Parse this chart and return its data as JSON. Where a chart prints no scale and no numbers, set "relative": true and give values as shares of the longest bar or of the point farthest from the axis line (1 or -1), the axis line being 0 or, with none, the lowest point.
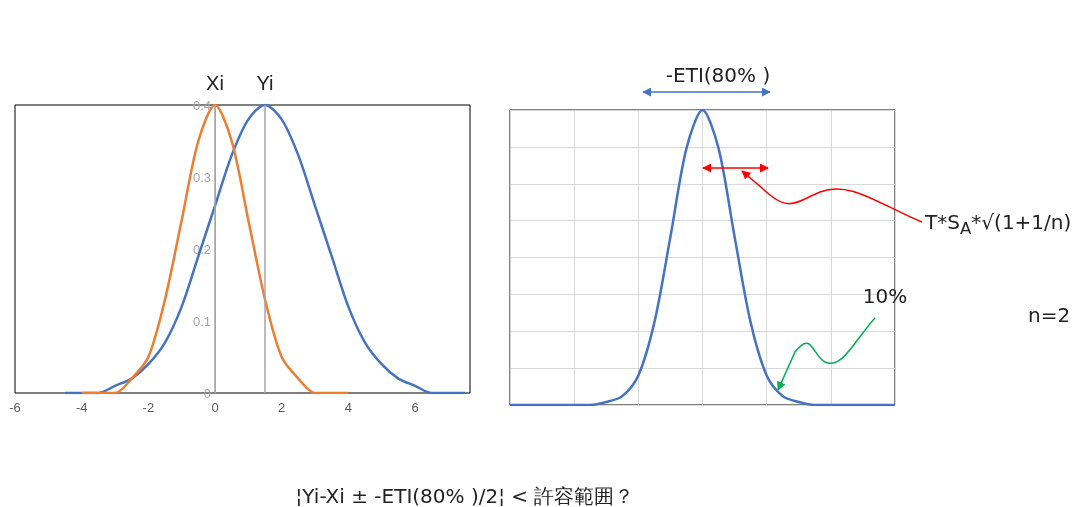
{
  "chart_data": [
    {
      "type": "line",
      "xlim": [
        -6,
        7.65
      ],
      "xticks": [
        -6,
        -4,
        -2,
        0,
        2,
        4,
        6
      ],
      "ylim": [
        0,
        0.4
      ],
      "yticks": [
        0,
        0.1,
        0.2,
        0.3,
        0.4
      ],
      "series": [
        {
          "color": "#4472c4",
          "x": [
            -4.5,
            -4,
            -3.5,
            -3,
            -2.5,
            -2,
            -1.5,
            -1,
            -0.5,
            0,
            0.5,
            1,
            1.5,
            2,
            2.5,
            3,
            3.5,
            4,
            4.5,
            5,
            5.5,
            6,
            6.5,
            7,
            7.5
          ],
          "values": [
            0,
            0,
            0,
            0.01,
            0.02,
            0.04,
            0.07,
            0.12,
            0.19,
            0.26,
            0.33,
            0.38,
            0.4,
            0.38,
            0.33,
            0.26,
            0.19,
            0.12,
            0.07,
            0.04,
            0.02,
            0.01,
            0,
            0,
            0
          ]
        },
        {
          "color": "#ed7d31",
          "x": [
            -4,
            -3.5,
            -3,
            -2.5,
            -2,
            -1.5,
            -1,
            -0.5,
            0,
            0.5,
            1,
            1.5,
            2,
            2.5,
            3,
            3.5,
            4
          ],
          "values": [
            0,
            0,
            0,
            0.02,
            0.05,
            0.13,
            0.24,
            0.35,
            0.4,
            0.35,
            0.24,
            0.13,
            0.05,
            0.02,
            0,
            0,
            0
          ]
        }
      ],
      "ref_lines": [
        {
          "axis": "x",
          "value": 0,
          "label": "Xi",
          "color": "#a6a6a6"
        },
        {
          "axis": "x",
          "value": 1.5,
          "label": "Yi",
          "color": "#a6a6a6"
        }
      ]
    },
    {
      "type": "line",
      "relative": true,
      "grid": true,
      "color": "#4472c4",
      "categories": [
        null,
        null,
        null,
        null,
        null,
        null,
        null,
        null,
        null,
        null,
        null,
        null,
        null,
        null,
        null,
        null,
        null,
        null,
        null,
        null,
        null,
        null,
        null,
        null,
        null
      ],
      "values": [
        0,
        0,
        0,
        0,
        0,
        0,
        0.01,
        0.03,
        0.1,
        0.28,
        0.57,
        0.87,
        1,
        0.87,
        0.57,
        0.28,
        0.1,
        0.03,
        0.01,
        0,
        0,
        0,
        0,
        0,
        0
      ],
      "annotations": [
        "-ETI(80% )",
        "T*S$_{A}$*√(1+1/n)",
        "10%",
        "n=2",
        "¦Yi-Xi ±   -ETI(80% )/2¦ < 許容範囲？"
      ]
    }
  ]
}
